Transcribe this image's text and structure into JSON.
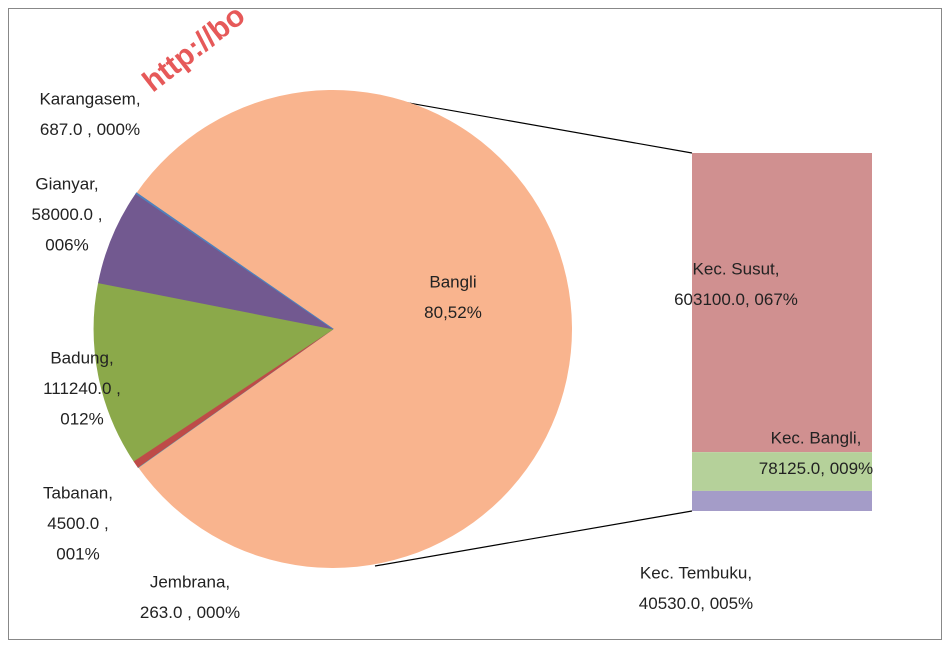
{
  "chart_data": {
    "type": "bar-of-pie",
    "watermark": "http://bo",
    "pie": {
      "categories": [
        "Bangli",
        "Jembrana,",
        "Tabanan,",
        "Badung,",
        "Gianyar,",
        "Karangasem,"
      ],
      "values": [
        80.52,
        263,
        4500,
        111240,
        58000,
        687
      ],
      "value_labels": [
        [
          "80,52%"
        ],
        [
          "263.0 , 000%"
        ],
        [
          "4500.0 ,",
          "001%"
        ],
        [
          "111240.0 ,",
          "012%"
        ],
        [
          "58000.0 ,",
          "006%"
        ],
        [
          "687.0 , 000%"
        ]
      ],
      "colors": [
        "#f9b48e",
        "#4bacc6",
        "#be4b48",
        "#8ba94a",
        "#725990",
        "#4f81bd"
      ]
    },
    "bar": {
      "categories": [
        "Kec. Susut,",
        "Kec. Bangli,",
        "Kec. Tembuku,"
      ],
      "values": [
        603100,
        78125,
        40530
      ],
      "value_labels": [
        "603100.0, 067%",
        "78125.0, 009%",
        "40530.0, 005%"
      ],
      "colors": [
        "#d09090",
        "#b5d19a",
        "#a49cc8"
      ]
    }
  }
}
